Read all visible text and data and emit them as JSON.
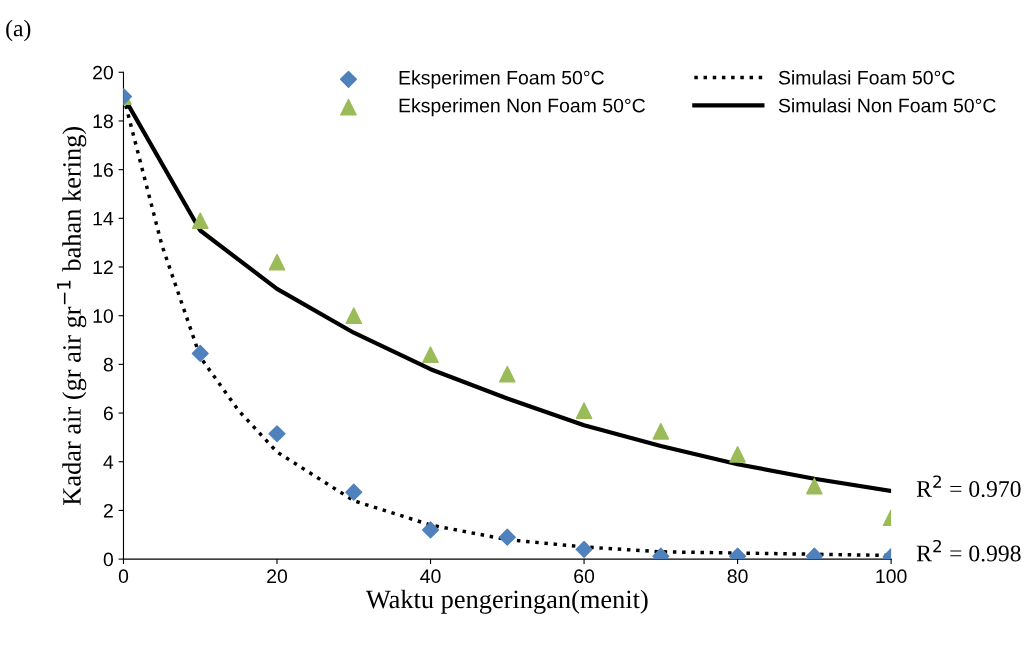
{
  "chart_data": {
    "type": "line",
    "title": "(a)",
    "xlabel": "Waktu pengeringan(menit)",
    "ylabel": "Kadar air (gr air gr$^{−1}$ bahan kering)",
    "xlim": [
      0,
      100
    ],
    "xticks": [
      0,
      20,
      40,
      60,
      80,
      100
    ],
    "ylim": [
      0,
      20
    ],
    "yticks": [
      0,
      2,
      4,
      6,
      8,
      10,
      12,
      14,
      16,
      18,
      20
    ],
    "grid": false,
    "legend": "top right",
    "series": [
      {
        "name": "Eksperimen Foam 50°C",
        "type": "scatter",
        "marker": "diamond",
        "color": "#4f81bd",
        "x": [
          0,
          10,
          20,
          30,
          40,
          50,
          60,
          70,
          80,
          90,
          100
        ],
        "values": [
          19.0,
          8.45,
          5.15,
          2.75,
          1.2,
          0.9,
          0.4,
          0.12,
          0.12,
          0.12,
          0.1
        ]
      },
      {
        "name": "Eksperimen Non Foam 50°C",
        "type": "scatter",
        "marker": "triangle",
        "color": "#9bbb59",
        "x": [
          0,
          10,
          20,
          30,
          40,
          50,
          60,
          70,
          80,
          90,
          100
        ],
        "values": [
          19.0,
          13.9,
          12.2,
          10.0,
          8.4,
          7.6,
          6.1,
          5.25,
          4.3,
          3.0,
          1.7
        ]
      },
      {
        "name": "Simulasi Foam 50°C",
        "type": "line",
        "line_style": "dotted",
        "color": "#000000",
        "x": [
          0,
          5,
          10,
          15,
          20,
          30,
          40,
          50,
          60,
          70,
          80,
          90,
          100
        ],
        "values": [
          19.0,
          12.9,
          8.3,
          6.1,
          4.4,
          2.4,
          1.4,
          0.8,
          0.5,
          0.3,
          0.25,
          0.2,
          0.15
        ]
      },
      {
        "name": "Simulasi Non Foam 50°C",
        "type": "line",
        "line_style": "solid",
        "color": "#000000",
        "x": [
          0,
          10,
          20,
          30,
          40,
          50,
          60,
          70,
          80,
          90,
          100
        ],
        "values": [
          19.0,
          13.5,
          11.1,
          9.3,
          7.8,
          6.6,
          5.5,
          4.65,
          3.9,
          3.3,
          2.8
        ]
      }
    ],
    "annotations": [
      {
        "text": "R$^{2}$ = 0.970",
        "x": 100,
        "y": 2.8
      },
      {
        "text": "R$^{2}$ = 0.998",
        "x": 100,
        "y": 0.15
      }
    ]
  }
}
